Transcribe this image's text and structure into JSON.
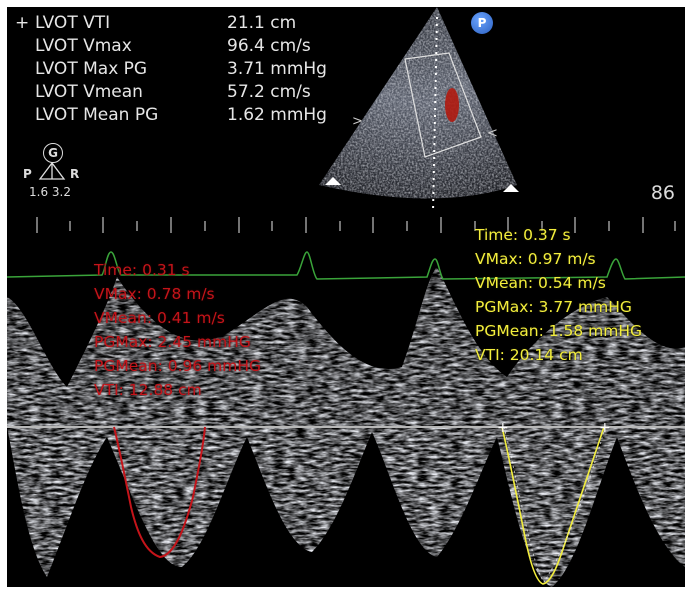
{
  "measurements": [
    {
      "prefix": "+",
      "label": "LVOT VTI",
      "value": "21.1 cm"
    },
    {
      "prefix": "",
      "label": "LVOT Vmax",
      "value": "96.4 cm/s"
    },
    {
      "prefix": "",
      "label": "LVOT Max PG",
      "value": "3.71 mmHg"
    },
    {
      "prefix": "",
      "label": "LVOT Vmean",
      "value": "57.2 cm/s"
    },
    {
      "prefix": "",
      "label": "LVOT Mean PG",
      "value": "1.62 mmHg"
    }
  ],
  "probe": {
    "marker": "G",
    "left": "P",
    "right": "R",
    "values": "1.6  3.2"
  },
  "depth_label": "86",
  "p_marker": "P",
  "red_trace": {
    "color": "#c4141a",
    "lines": [
      "Time:  0.31 s",
      "VMax:  0.78 m/s",
      "VMean:  0.41 m/s",
      "PGMax:  2.45 mmHG",
      "PGMean:  0.96 mmHG",
      "VTI:   12.88 cm"
    ]
  },
  "yellow_trace": {
    "color": "#f3ee3d",
    "lines": [
      "Time:  0.37 s",
      "VMax:  0.97 m/s",
      "VMean:  0.54 m/s",
      "PGMax:  3.77 mmHG",
      "PGMean:  1.58 mmHG",
      "VTI:   20.14 cm"
    ]
  },
  "colors": {
    "ecg": "#3aa43a",
    "baseline": "#b8b8b8",
    "doppler": "#e8eaf0"
  }
}
